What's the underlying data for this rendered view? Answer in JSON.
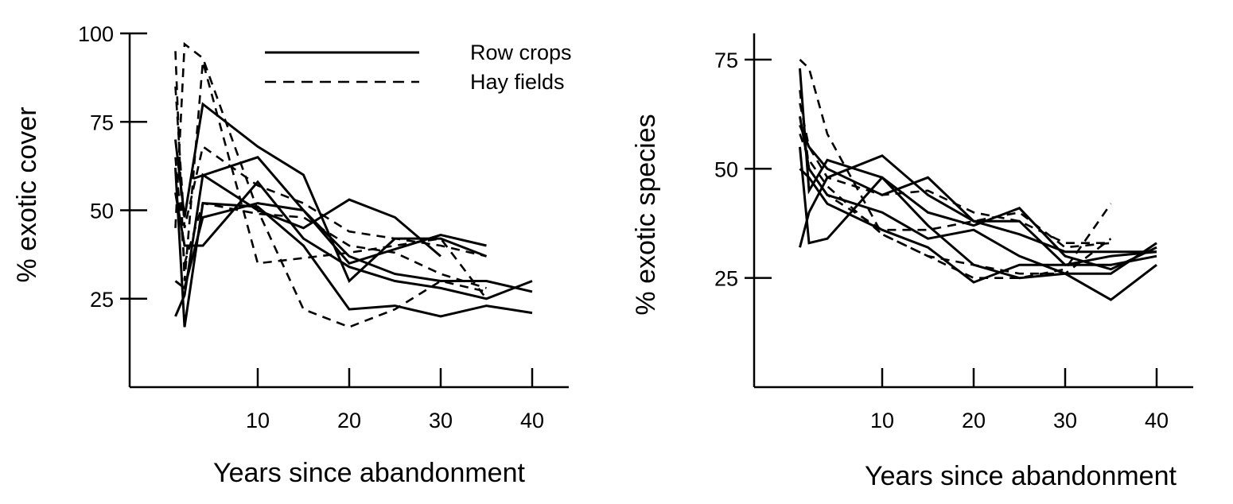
{
  "chart_data": [
    {
      "type": "line",
      "xlabel": "Years since abandonment",
      "ylabel": "% exotic cover",
      "xlim": [
        -4,
        44
      ],
      "ylim": [
        0,
        100
      ],
      "xticks": [
        10,
        20,
        30,
        40
      ],
      "yticks": [
        25,
        50,
        75,
        100
      ],
      "grid": false,
      "legend": {
        "placement": "top-right",
        "entries": [
          {
            "label": "Row crops",
            "style": "solid"
          },
          {
            "label": "Hay fields",
            "style": "dashed"
          }
        ]
      },
      "series": [
        {
          "style": "solid",
          "x": [
            1,
            2,
            4,
            10,
            15,
            20,
            25,
            30,
            35
          ],
          "y": [
            70,
            48,
            80,
            68,
            60,
            30,
            42,
            42,
            37
          ]
        },
        {
          "style": "solid",
          "x": [
            1,
            2,
            4,
            10,
            15,
            20,
            25,
            30
          ],
          "y": [
            20,
            26,
            60,
            50,
            45,
            53,
            48,
            37
          ]
        },
        {
          "style": "solid",
          "x": [
            1,
            2,
            4,
            10,
            15,
            20,
            25,
            30,
            35,
            40
          ],
          "y": [
            62,
            17,
            52,
            51,
            40,
            22,
            23,
            20,
            23,
            21
          ]
        },
        {
          "style": "solid",
          "x": [
            1,
            2,
            4,
            10,
            15,
            20,
            25,
            30,
            35,
            40
          ],
          "y": [
            30,
            28,
            48,
            52,
            50,
            37,
            32,
            30,
            30,
            27
          ]
        },
        {
          "style": "solid",
          "x": [
            1,
            2,
            4,
            10,
            15,
            20,
            25,
            30,
            35,
            40
          ],
          "y": [
            55,
            40,
            40,
            58,
            42,
            34,
            30,
            28,
            25,
            30
          ]
        },
        {
          "style": "solid",
          "x": [
            3,
            10,
            20,
            30,
            35
          ],
          "y": [
            59,
            65,
            35,
            43,
            40
          ]
        },
        {
          "style": "dashed",
          "x": [
            1,
            2,
            4,
            10,
            15,
            20,
            25,
            30,
            35
          ],
          "y": [
            45,
            97,
            93,
            50,
            22,
            17,
            22,
            30,
            27
          ]
        },
        {
          "style": "dashed",
          "x": [
            1,
            2,
            4,
            10,
            20,
            30,
            35
          ],
          "y": [
            95,
            30,
            92,
            35,
            38,
            42,
            25
          ]
        },
        {
          "style": "dashed",
          "x": [
            1,
            2,
            4,
            10,
            15,
            20,
            25,
            30,
            35
          ],
          "y": [
            85,
            45,
            68,
            57,
            52,
            44,
            42,
            40,
            37
          ]
        },
        {
          "style": "dashed",
          "x": [
            1,
            2,
            4,
            10,
            15,
            20,
            25,
            30,
            35
          ],
          "y": [
            65,
            35,
            52,
            49,
            48,
            40,
            38,
            32,
            28
          ]
        }
      ]
    },
    {
      "type": "line",
      "xlabel": "Years since abandonment",
      "ylabel": "% exotic species",
      "xlim": [
        -4,
        44
      ],
      "ylim": [
        0,
        81
      ],
      "xticks": [
        10,
        20,
        30,
        40
      ],
      "yticks": [
        25,
        50,
        75
      ],
      "grid": false,
      "series": [
        {
          "style": "solid",
          "x": [
            1,
            2,
            4,
            10,
            15,
            20,
            25,
            30,
            35,
            40
          ],
          "y": [
            73,
            45,
            52,
            48,
            37,
            28,
            25,
            26,
            20,
            28
          ]
        },
        {
          "style": "solid",
          "x": [
            1,
            2,
            4,
            10,
            15,
            20,
            25,
            30,
            35,
            40
          ],
          "y": [
            32,
            40,
            48,
            53,
            44,
            38,
            35,
            31,
            31,
            31
          ]
        },
        {
          "style": "solid",
          "x": [
            1,
            2,
            4,
            10,
            15,
            20,
            25,
            30,
            35,
            40
          ],
          "y": [
            55,
            33,
            34,
            48,
            40,
            37,
            41,
            30,
            27,
            32
          ]
        },
        {
          "style": "solid",
          "x": [
            1,
            2,
            4,
            10,
            15,
            20,
            25,
            30,
            35,
            40
          ],
          "y": [
            62,
            50,
            44,
            40,
            34,
            36,
            30,
            26,
            26,
            33
          ]
        },
        {
          "style": "solid",
          "x": [
            1,
            2,
            4,
            10,
            15,
            20,
            25,
            30,
            35,
            40
          ],
          "y": [
            50,
            48,
            42,
            36,
            32,
            24,
            28,
            28,
            30,
            31
          ]
        },
        {
          "style": "solid",
          "x": [
            1,
            2,
            4,
            10,
            15,
            20,
            25,
            30,
            35,
            40
          ],
          "y": [
            60,
            55,
            50,
            44,
            48,
            38,
            38,
            28,
            28,
            30
          ]
        },
        {
          "style": "dashed",
          "x": [
            1,
            2,
            4,
            10,
            15,
            20,
            25,
            30,
            35
          ],
          "y": [
            75,
            73,
            58,
            35,
            30,
            25,
            25,
            27,
            42
          ]
        },
        {
          "style": "dashed",
          "x": [
            1,
            2,
            4,
            10,
            15,
            20,
            25,
            30,
            35
          ],
          "y": [
            68,
            50,
            44,
            36,
            36,
            38,
            40,
            32,
            33
          ]
        },
        {
          "style": "dashed",
          "x": [
            1,
            2,
            4,
            10,
            15,
            20,
            25,
            30,
            35
          ],
          "y": [
            65,
            55,
            48,
            44,
            45,
            40,
            38,
            33,
            33
          ]
        },
        {
          "style": "dashed",
          "x": [
            1,
            2,
            4,
            10,
            15,
            20,
            25,
            30,
            35
          ],
          "y": [
            58,
            52,
            46,
            35,
            30,
            28,
            26,
            26,
            34
          ]
        }
      ]
    }
  ]
}
